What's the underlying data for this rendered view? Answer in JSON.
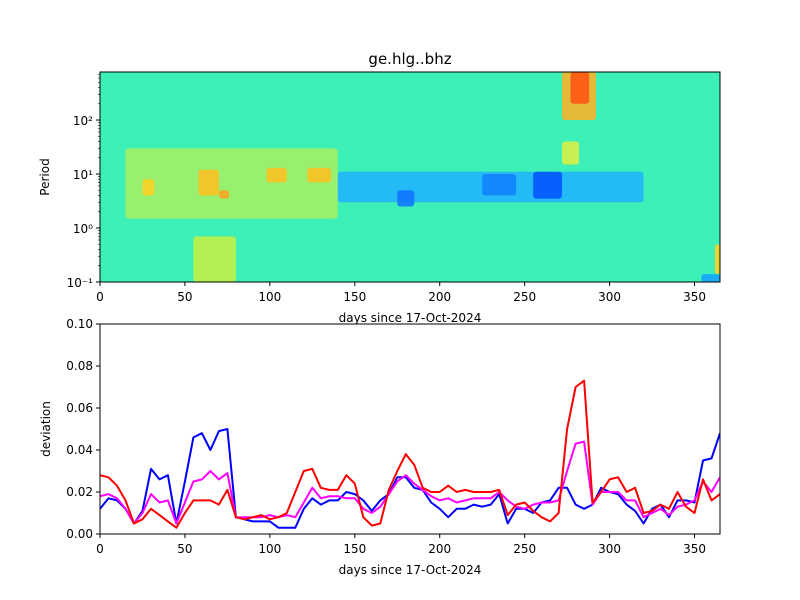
{
  "chart_data": [
    {
      "type": "heatmap",
      "title": "ge.hlg..bhz",
      "xlabel": "days since 17-Oct-2024",
      "ylabel": "Period",
      "xlim": [
        0,
        365
      ],
      "ylim": [
        0.1,
        775
      ],
      "yscale": "log",
      "xticks": [
        0,
        50,
        100,
        150,
        200,
        250,
        300,
        350
      ],
      "yticks": [
        {
          "value": 0.1,
          "label": "10⁻¹"
        },
        {
          "value": 1,
          "label": "10⁰"
        },
        {
          "value": 10,
          "label": "10¹"
        },
        {
          "value": 100,
          "label": "10²"
        }
      ],
      "background_color": "#3cf0b8",
      "features": [
        {
          "days": [
            15,
            140
          ],
          "period": [
            1.5,
            30
          ],
          "color": "#a8f060"
        },
        {
          "days": [
            55,
            80
          ],
          "period": [
            0.1,
            0.7
          ],
          "color": "#c8f040"
        },
        {
          "days": [
            25,
            32
          ],
          "period": [
            4,
            8
          ],
          "color": "#ffd020"
        },
        {
          "days": [
            58,
            70
          ],
          "period": [
            4,
            12
          ],
          "color": "#ffc020"
        },
        {
          "days": [
            70,
            76
          ],
          "period": [
            3.5,
            5
          ],
          "color": "#ffa020"
        },
        {
          "days": [
            98,
            110
          ],
          "period": [
            7,
            13
          ],
          "color": "#ffc020"
        },
        {
          "days": [
            122,
            136
          ],
          "period": [
            7,
            13
          ],
          "color": "#ffc020"
        },
        {
          "days": [
            140,
            320
          ],
          "period": [
            3,
            11
          ],
          "color": "#20b0ff"
        },
        {
          "days": [
            175,
            185
          ],
          "period": [
            2.5,
            5
          ],
          "color": "#1070ff"
        },
        {
          "days": [
            225,
            245
          ],
          "period": [
            4,
            10
          ],
          "color": "#1080ff"
        },
        {
          "days": [
            255,
            272
          ],
          "period": [
            3.5,
            11
          ],
          "color": "#0050ff"
        },
        {
          "days": [
            272,
            292
          ],
          "period": [
            100,
            775
          ],
          "color": "#ffb020"
        },
        {
          "days": [
            277,
            288
          ],
          "period": [
            200,
            775
          ],
          "color": "#ff5010"
        },
        {
          "days": [
            272,
            282
          ],
          "period": [
            15,
            40
          ],
          "color": "#e0f040"
        },
        {
          "days": [
            354,
            365
          ],
          "period": [
            0.1,
            0.14
          ],
          "color": "#10a0ff"
        },
        {
          "days": [
            362,
            365
          ],
          "period": [
            0.14,
            0.5
          ],
          "color": "#ffd020"
        }
      ]
    },
    {
      "type": "line",
      "xlabel": "days since 17-Oct-2024",
      "ylabel": "deviation",
      "xlim": [
        0,
        365
      ],
      "ylim": [
        0,
        0.1
      ],
      "xticks": [
        0,
        50,
        100,
        150,
        200,
        250,
        300,
        350
      ],
      "yticks": [
        "0.00",
        "0.02",
        "0.04",
        "0.06",
        "0.08",
        "0.10"
      ],
      "x": [
        0,
        5,
        10,
        15,
        20,
        25,
        30,
        35,
        40,
        45,
        50,
        55,
        60,
        65,
        70,
        75,
        80,
        85,
        90,
        95,
        100,
        105,
        110,
        115,
        120,
        125,
        130,
        135,
        140,
        145,
        150,
        155,
        160,
        165,
        170,
        175,
        180,
        185,
        190,
        195,
        200,
        205,
        210,
        215,
        220,
        225,
        230,
        235,
        240,
        245,
        250,
        255,
        260,
        265,
        270,
        275,
        280,
        285,
        290,
        295,
        300,
        305,
        310,
        315,
        320,
        325,
        330,
        335,
        340,
        345,
        350,
        355,
        360,
        365
      ],
      "series": [
        {
          "name": "blue",
          "color": "#0000ff",
          "values": [
            0.012,
            0.017,
            0.016,
            0.012,
            0.005,
            0.011,
            0.031,
            0.026,
            0.028,
            0.005,
            0.025,
            0.046,
            0.048,
            0.04,
            0.049,
            0.05,
            0.008,
            0.007,
            0.006,
            0.006,
            0.006,
            0.003,
            0.003,
            0.003,
            0.012,
            0.017,
            0.014,
            0.016,
            0.016,
            0.02,
            0.019,
            0.016,
            0.011,
            0.016,
            0.019,
            0.027,
            0.027,
            0.022,
            0.021,
            0.015,
            0.012,
            0.008,
            0.012,
            0.012,
            0.014,
            0.013,
            0.014,
            0.019,
            0.005,
            0.012,
            0.012,
            0.01,
            0.015,
            0.016,
            0.022,
            0.022,
            0.014,
            0.012,
            0.014,
            0.022,
            0.02,
            0.019,
            0.014,
            0.011,
            0.005,
            0.012,
            0.014,
            0.008,
            0.016,
            0.016,
            0.015,
            0.035,
            0.036,
            0.048
          ]
        },
        {
          "name": "magenta",
          "color": "#ff00ff",
          "values": [
            0.018,
            0.019,
            0.017,
            0.012,
            0.005,
            0.01,
            0.019,
            0.015,
            0.016,
            0.005,
            0.015,
            0.025,
            0.026,
            0.03,
            0.026,
            0.029,
            0.008,
            0.008,
            0.008,
            0.008,
            0.009,
            0.008,
            0.009,
            0.008,
            0.015,
            0.022,
            0.017,
            0.018,
            0.018,
            0.017,
            0.017,
            0.012,
            0.01,
            0.013,
            0.019,
            0.025,
            0.028,
            0.024,
            0.021,
            0.018,
            0.016,
            0.017,
            0.015,
            0.016,
            0.017,
            0.017,
            0.017,
            0.02,
            0.016,
            0.013,
            0.012,
            0.014,
            0.015,
            0.015,
            0.016,
            0.03,
            0.043,
            0.044,
            0.014,
            0.02,
            0.02,
            0.02,
            0.016,
            0.016,
            0.008,
            0.01,
            0.012,
            0.009,
            0.013,
            0.014,
            0.016,
            0.025,
            0.02,
            0.027
          ]
        },
        {
          "name": "red",
          "color": "#ff0000",
          "values": [
            0.028,
            0.027,
            0.023,
            0.016,
            0.005,
            0.007,
            0.012,
            0.009,
            0.006,
            0.003,
            0.01,
            0.016,
            0.016,
            0.016,
            0.014,
            0.021,
            0.008,
            0.007,
            0.008,
            0.009,
            0.007,
            0.008,
            0.01,
            0.02,
            0.03,
            0.031,
            0.022,
            0.021,
            0.021,
            0.028,
            0.024,
            0.008,
            0.004,
            0.005,
            0.021,
            0.03,
            0.038,
            0.033,
            0.022,
            0.02,
            0.02,
            0.023,
            0.02,
            0.021,
            0.02,
            0.02,
            0.02,
            0.021,
            0.009,
            0.014,
            0.015,
            0.011,
            0.008,
            0.006,
            0.01,
            0.05,
            0.07,
            0.073,
            0.015,
            0.02,
            0.026,
            0.027,
            0.02,
            0.022,
            0.01,
            0.011,
            0.014,
            0.012,
            0.02,
            0.013,
            0.01,
            0.026,
            0.016,
            0.019
          ]
        }
      ]
    }
  ]
}
